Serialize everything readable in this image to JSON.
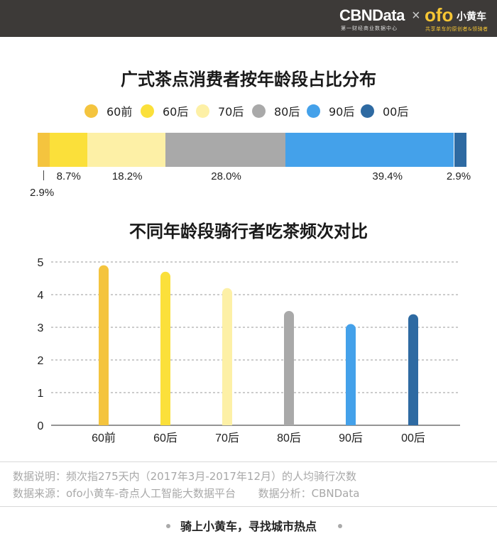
{
  "header": {
    "brand_main": "CBNData",
    "brand_main_sub": "第一财经商业数据中心",
    "brand_separator": "×",
    "partner_logo": "ofo",
    "partner_name": "小黄车",
    "partner_sub": "共享单车的原创者&领骑者"
  },
  "chart_data": [
    {
      "type": "bar",
      "orientation": "horizontal-stacked",
      "title": "广式茶点消费者按年龄段占比分布",
      "categories": [
        "60前",
        "60后",
        "70后",
        "80后",
        "90后",
        "00后"
      ],
      "values": [
        2.9,
        8.7,
        18.2,
        28.0,
        39.4,
        2.9
      ],
      "value_labels": [
        "2.9%",
        "8.7%",
        "18.2%",
        "28.0%",
        "39.4%",
        "2.9%"
      ],
      "unit": "%",
      "colors": [
        "#f4c43e",
        "#fbe03a",
        "#fdf0a6",
        "#a9a9a9",
        "#44a1ea",
        "#2e6aa2"
      ],
      "legend_position": "top"
    },
    {
      "type": "bar",
      "title": "不同年龄段骑行者吃茶频次对比",
      "categories": [
        "60前",
        "60后",
        "70后",
        "80后",
        "90后",
        "00后"
      ],
      "values": [
        4.9,
        4.7,
        4.2,
        3.5,
        3.1,
        3.4
      ],
      "colors": [
        "#f4c43e",
        "#fbe03a",
        "#fdf0a6",
        "#a9a9a9",
        "#44a1ea",
        "#2e6aa2"
      ],
      "ylim": [
        0,
        5
      ],
      "yticks": [
        0,
        1,
        2,
        3,
        4,
        5
      ],
      "grid": true
    }
  ],
  "notes": {
    "explanation": "数据说明：频次指275天内（2017年3月-2017年12月）的人均骑行次数",
    "source": "数据来源：ofo小黄车-奇点人工智能大数据平台",
    "analysis": "数据分析：CBNData"
  },
  "footer": {
    "slogan": "骑上小黄车，寻找城市热点"
  }
}
